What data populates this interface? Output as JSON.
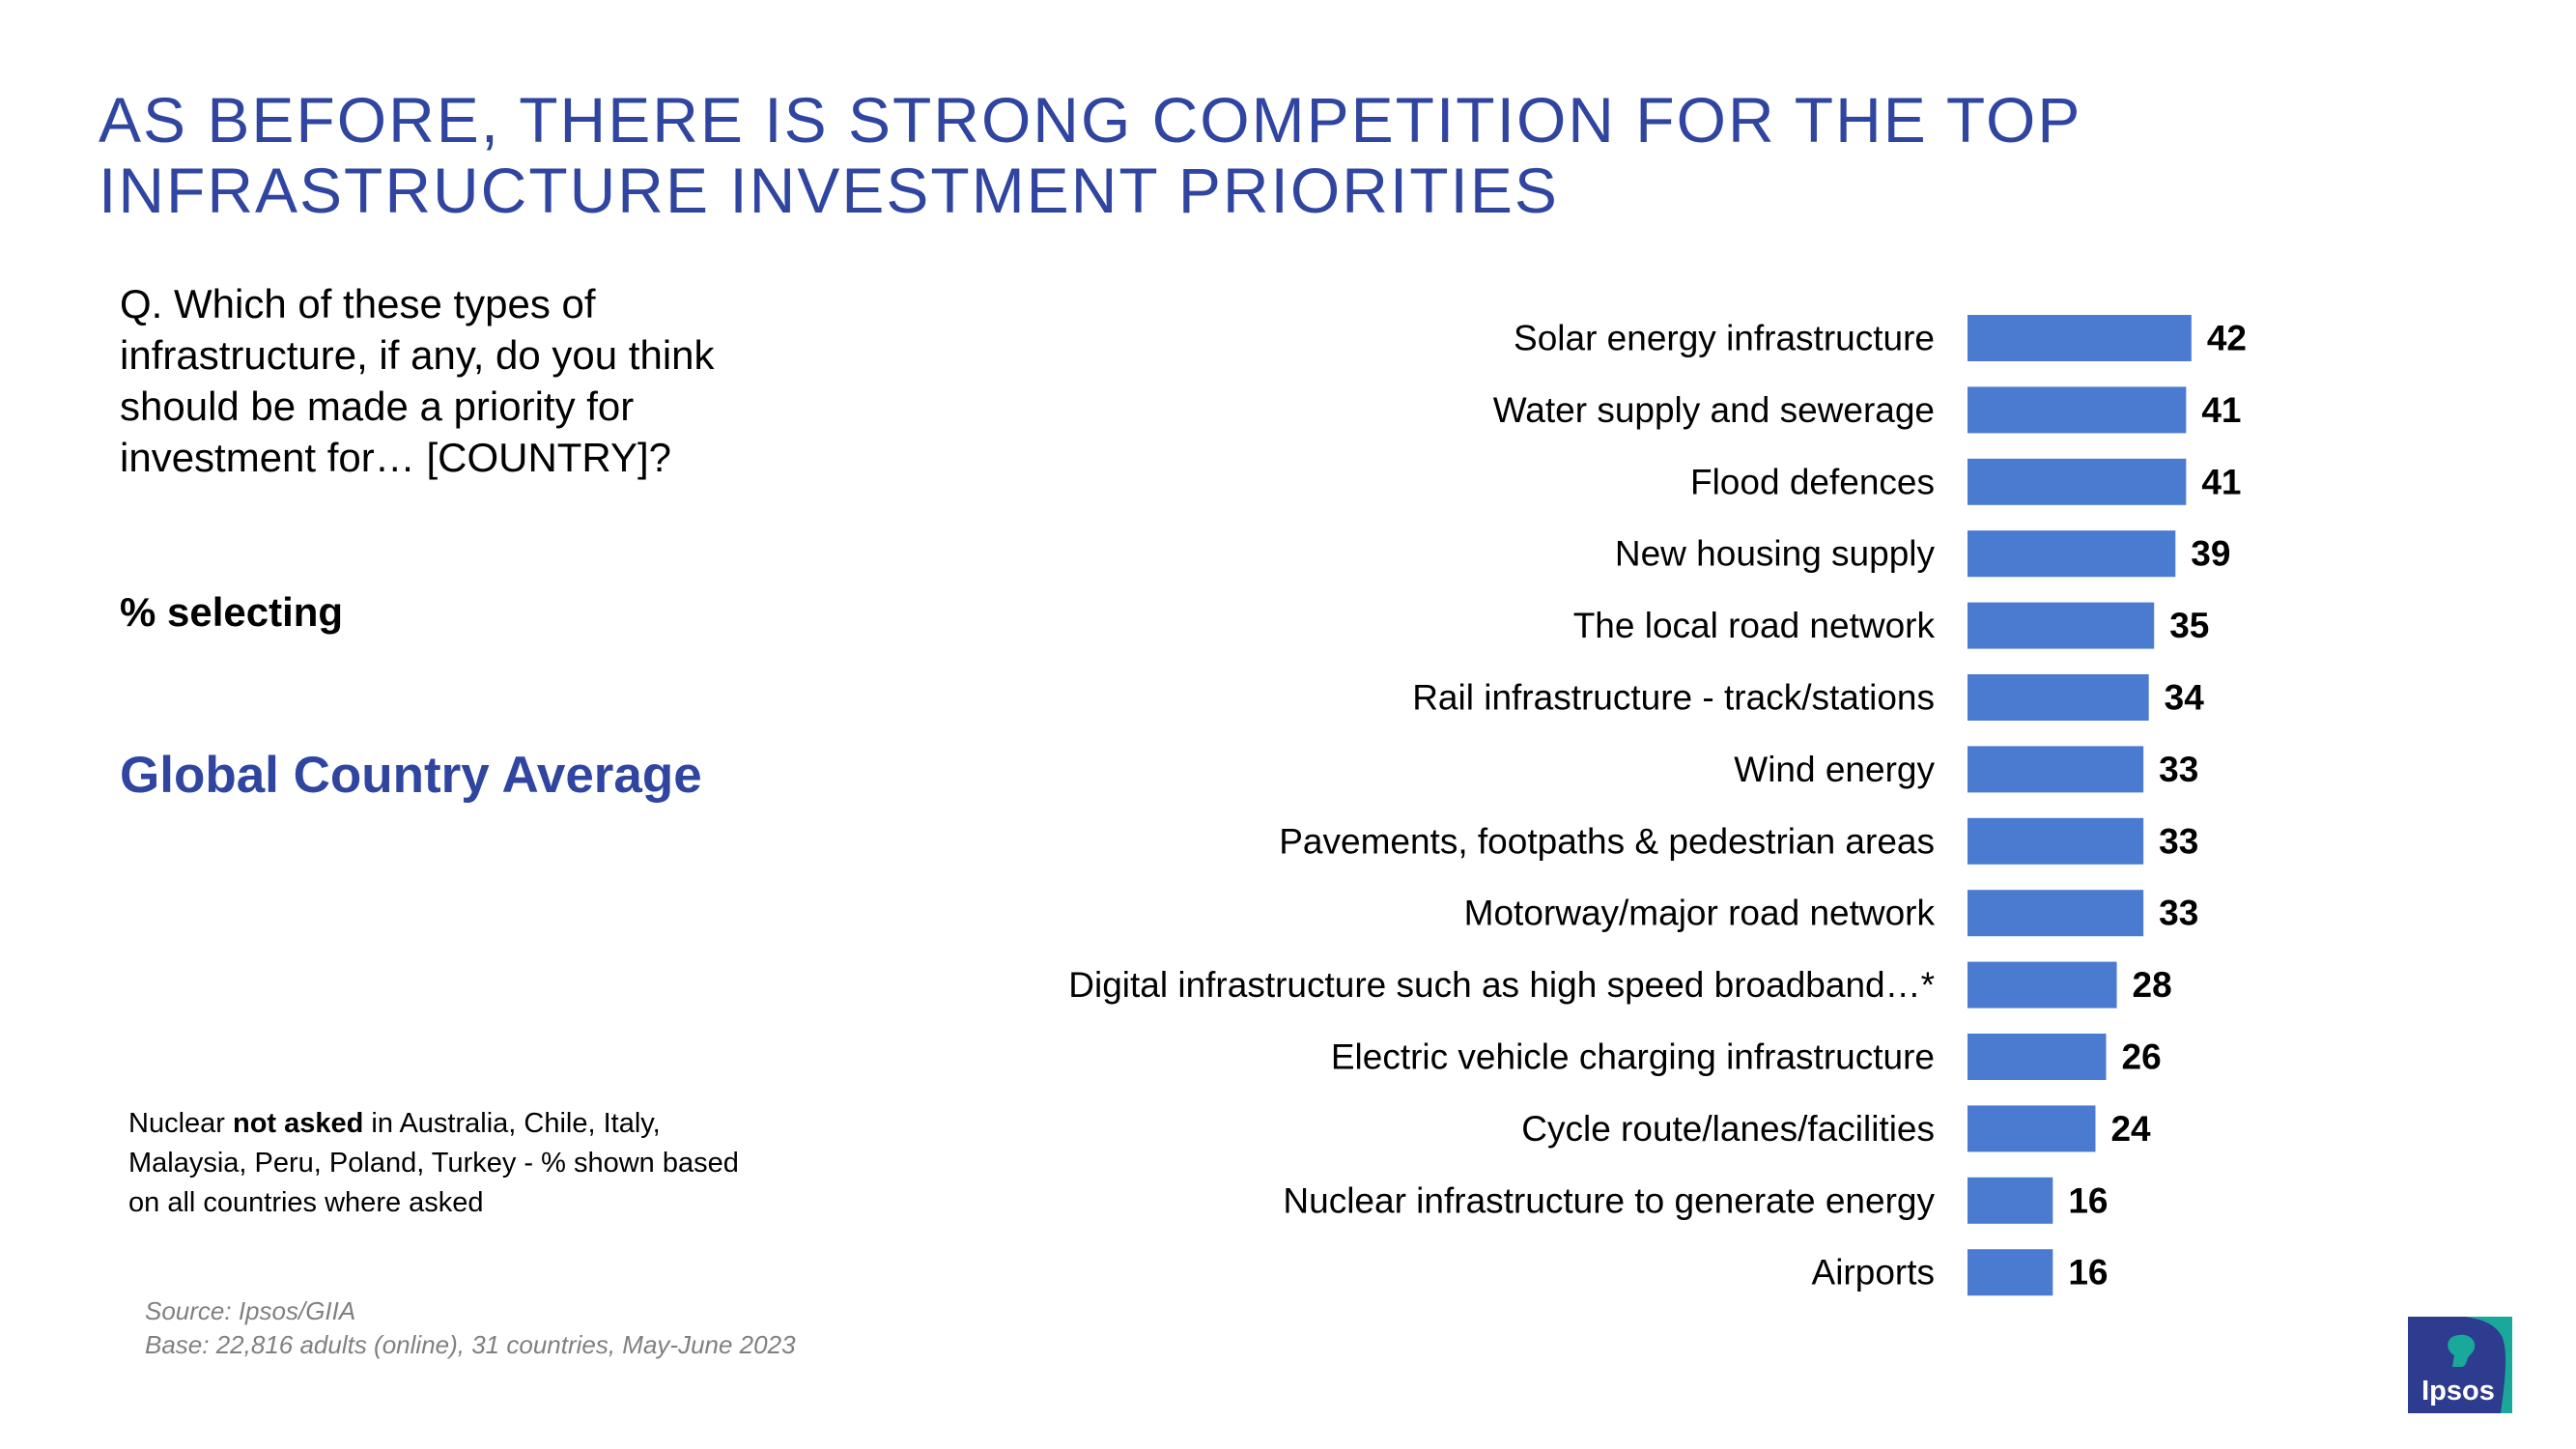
{
  "slide": {
    "title_line1": "AS BEFORE, THERE IS STRONG COMPETITION FOR THE TOP",
    "title_line2": "INFRASTRUCTURE INVESTMENT PRIORITIES",
    "question": "Q. Which of these types of infrastructure, if any, do you think should be made a priority for investment for… [COUNTRY]?",
    "selecting": "% selecting",
    "average_label": "Global Country Average",
    "note": {
      "prefix": "Nuclear ",
      "bold": "not asked",
      "suffix": " in Australia, Chile, Italy, Malaysia, Peru, Poland, Turkey - % shown based on all countries where asked"
    },
    "source_line1": "Source: Ipsos/GIIA",
    "source_line2": "Base: 22,816 adults (online), 31 countries, May-June 2023",
    "logo_text": "Ipsos"
  },
  "chart_data": {
    "type": "bar",
    "orientation": "horizontal",
    "categories": [
      "Solar energy infrastructure",
      "Water supply and sewerage",
      "Flood defences",
      "New housing supply",
      "The local road network",
      "Rail infrastructure - track/stations",
      "Wind energy",
      "Pavements, footpaths & pedestrian areas",
      "Motorway/major road network",
      "Digital infrastructure such as high speed broadband…*",
      "Electric vehicle charging infrastructure",
      "Cycle route/lanes/facilities",
      "Nuclear infrastructure to generate energy",
      "Airports"
    ],
    "values": [
      42,
      41,
      41,
      39,
      35,
      34,
      33,
      33,
      33,
      28,
      26,
      24,
      16,
      16
    ],
    "data_labels": true,
    "bar_color": "#4a7bd0",
    "grid": false,
    "legend": "none"
  },
  "colors": {
    "title": "#2f45a0",
    "logo_blue": "#2d3c8f",
    "logo_teal": "#1aa89a"
  }
}
